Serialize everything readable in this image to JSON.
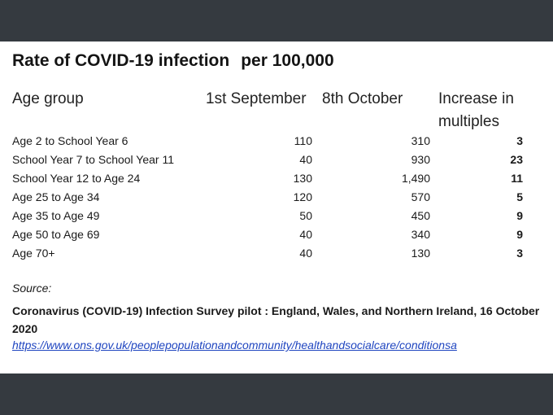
{
  "title": {
    "main": "Rate of COVID-19 infection",
    "sub": "per 100,000"
  },
  "headers": {
    "age_group": "Age group",
    "sep": "1st September",
    "oct": "8th October",
    "increase_line1": "Increase in",
    "increase_line2": "multiples"
  },
  "rows": [
    {
      "age": "Age 2 to School Year 6",
      "sep": "110",
      "oct": "310",
      "inc": "3"
    },
    {
      "age": "School Year 7 to School Year 11",
      "sep": "40",
      "oct": "930",
      "inc": "23"
    },
    {
      "age": "School Year 12 to Age 24",
      "sep": "130",
      "oct": "1,490",
      "inc": "11"
    },
    {
      "age": "Age 25 to Age 34",
      "sep": "120",
      "oct": "570",
      "inc": "5"
    },
    {
      "age": "Age 35 to Age 49",
      "sep": "50",
      "oct": "450",
      "inc": "9"
    },
    {
      "age": "Age 50 to Age 69",
      "sep": "40",
      "oct": "340",
      "inc": "9"
    },
    {
      "age": "Age 70+",
      "sep": "40",
      "oct": "130",
      "inc": "3"
    }
  ],
  "source": {
    "label": "Source:",
    "title": "Coronavirus (COVID-19) Infection Survey pilot : England, Wales, and Northern Ireland, 16 October 2020",
    "link": "https://www.ons.gov.uk/peoplepopulationandcommunity/healthandsocialcare/conditionsa"
  }
}
